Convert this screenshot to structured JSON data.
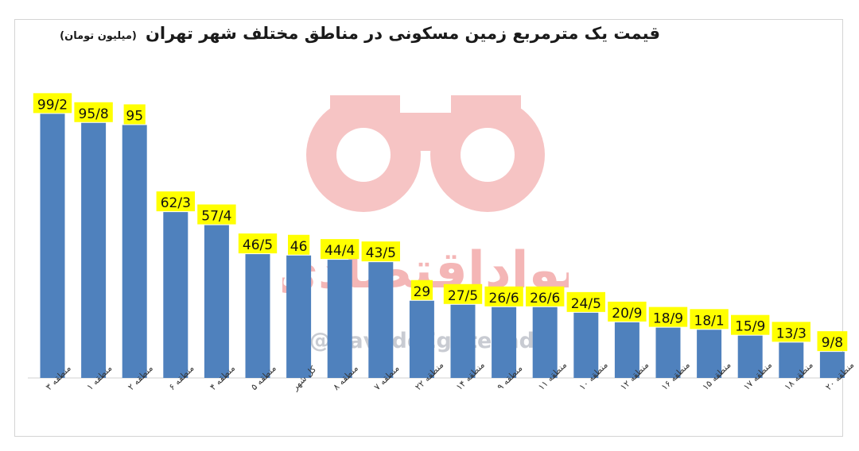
{
  "chart_data": {
    "type": "bar",
    "title": "قیمت یک مترمربع زمین مسکونی در مناطق مختلف شهر تهران",
    "subtitle": "(میلیون تومان)",
    "xlabel": "",
    "ylabel": "",
    "ylim": [
      0,
      110
    ],
    "grid": false,
    "legend": "none",
    "bar_color": "#4f81bd",
    "label_highlight_color": "#ffff00",
    "categories": [
      "منطقه ۳",
      "منطقه ۱",
      "منطقه ۲",
      "منطقه ۶",
      "منطقه ۴",
      "منطقه ۵",
      "کل شهر",
      "منطقه ۸",
      "منطقه ۷",
      "منطقه ۲۲",
      "منطقه ۱۴",
      "منطقه ۹",
      "منطقه ۱۱",
      "منطقه ۱۰",
      "منطقه ۱۲",
      "منطقه ۱۶",
      "منطقه ۱۵",
      "منطقه ۱۷",
      "منطقه ۱۸",
      "منطقه ۲۰"
    ],
    "values": [
      99.2,
      95.8,
      95,
      62.3,
      57.4,
      46.5,
      46,
      44.4,
      43.5,
      29,
      27.5,
      26.6,
      26.6,
      24.5,
      20.9,
      18.9,
      18.1,
      15.9,
      13.3,
      9.8
    ],
    "value_labels": [
      "99/2",
      "95/8",
      "95",
      "62/3",
      "57/4",
      "46/5",
      "46",
      "44/4",
      "43/5",
      "29",
      "27/5",
      "26/6",
      "26/6",
      "24/5",
      "20/9",
      "18/9",
      "18/1",
      "15/9",
      "13/3",
      "9/8"
    ]
  },
  "watermark": {
    "text": "نوادِاقتصادی",
    "handle": "@NavadeEghtesadi",
    "color": "#f4b6b6"
  }
}
